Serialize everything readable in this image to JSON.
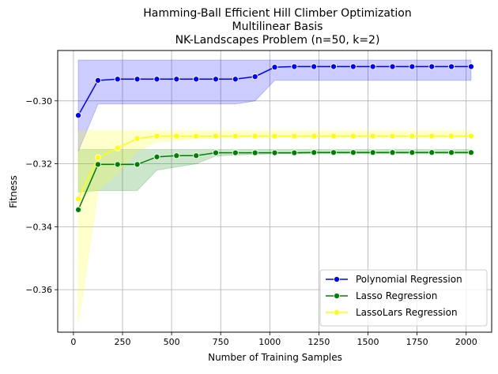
{
  "chart_data": {
    "type": "line",
    "title_lines": [
      "Hamming-Ball Efficient Hill Climber Optimization",
      "Multilinear Basis",
      "NK-Landscapes Problem (n=50, k=2)"
    ],
    "xlabel": "Number of Training Samples",
    "ylabel": "Fitness",
    "xlim": [
      -80,
      2130
    ],
    "ylim": [
      -0.3735,
      -0.284
    ],
    "xticks": [
      0,
      250,
      500,
      750,
      1000,
      1250,
      1500,
      1750,
      2000
    ],
    "xtick_labels": [
      "0",
      "250",
      "500",
      "750",
      "1000",
      "1250",
      "1500",
      "1750",
      "2000"
    ],
    "yticks": [
      -0.3,
      -0.32,
      -0.34,
      -0.36
    ],
    "ytick_labels": [
      "−0.30",
      "−0.32",
      "−0.34",
      "−0.36"
    ],
    "grid": true,
    "legend_position": "lower-right",
    "x": [
      25,
      125,
      225,
      325,
      425,
      525,
      625,
      725,
      825,
      925,
      1025,
      1125,
      1225,
      1325,
      1425,
      1525,
      1625,
      1725,
      1825,
      1925,
      2025
    ],
    "series": [
      {
        "name": "Polynomial Regression",
        "color": "#0000ff",
        "band_color": "#0000ff",
        "band_opacity": 0.2,
        "values": [
          -0.3046,
          -0.2935,
          -0.2931,
          -0.2931,
          -0.2931,
          -0.2931,
          -0.2931,
          -0.2931,
          -0.2931,
          -0.2923,
          -0.2893,
          -0.2891,
          -0.2891,
          -0.2891,
          -0.2891,
          -0.2891,
          -0.2891,
          -0.2891,
          -0.2891,
          -0.2891,
          -0.2891
        ],
        "lower": [
          -0.316,
          -0.301,
          -0.301,
          -0.301,
          -0.301,
          -0.301,
          -0.301,
          -0.301,
          -0.301,
          -0.3,
          -0.2935,
          -0.2935,
          -0.2935,
          -0.2935,
          -0.2935,
          -0.2935,
          -0.2935,
          -0.2935,
          -0.2935,
          -0.2935,
          -0.2935
        ],
        "upper": [
          -0.287,
          -0.287,
          -0.287,
          -0.287,
          -0.287,
          -0.287,
          -0.287,
          -0.287,
          -0.287,
          -0.287,
          -0.287,
          -0.287,
          -0.287,
          -0.287,
          -0.287,
          -0.287,
          -0.287,
          -0.287,
          -0.287,
          -0.287,
          -0.287
        ]
      },
      {
        "name": "Lasso Regression",
        "color": "#008000",
        "band_color": "#008000",
        "band_opacity": 0.2,
        "values": [
          -0.3346,
          -0.3202,
          -0.3202,
          -0.3202,
          -0.3178,
          -0.3174,
          -0.3174,
          -0.3165,
          -0.3165,
          -0.3165,
          -0.3165,
          -0.3165,
          -0.3164,
          -0.3164,
          -0.3164,
          -0.3164,
          -0.3164,
          -0.3164,
          -0.3164,
          -0.3164,
          -0.3164
        ],
        "lower": [
          -0.329,
          -0.3285,
          -0.3285,
          -0.3285,
          -0.322,
          -0.321,
          -0.32,
          -0.3175,
          -0.3172,
          -0.317,
          -0.3168,
          -0.3168,
          -0.3168,
          -0.3168,
          -0.3168,
          -0.3168,
          -0.3168,
          -0.3168,
          -0.3168,
          -0.3168,
          -0.3168
        ],
        "upper": [
          -0.3155,
          -0.3155,
          -0.3155,
          -0.3155,
          -0.3155,
          -0.3155,
          -0.3155,
          -0.3155,
          -0.3155,
          -0.3155,
          -0.3155,
          -0.3155,
          -0.3155,
          -0.3155,
          -0.3155,
          -0.3155,
          -0.3155,
          -0.3155,
          -0.3155,
          -0.3155,
          -0.3155
        ]
      },
      {
        "name": "LassoLars Regression",
        "color": "#ffff00",
        "band_color": "#ffff00",
        "band_opacity": 0.2,
        "values": [
          -0.3312,
          -0.318,
          -0.315,
          -0.312,
          -0.3112,
          -0.3112,
          -0.3112,
          -0.3112,
          -0.3112,
          -0.3112,
          -0.3112,
          -0.3112,
          -0.3112,
          -0.3112,
          -0.3112,
          -0.3112,
          -0.3112,
          -0.3112,
          -0.3112,
          -0.3112,
          -0.3112
        ],
        "lower": [
          -0.3705,
          -0.3285,
          -0.323,
          -0.316,
          -0.313,
          -0.3125,
          -0.312,
          -0.3118,
          -0.3115,
          -0.3115,
          -0.3115,
          -0.3115,
          -0.3115,
          -0.3115,
          -0.3115,
          -0.3115,
          -0.3115,
          -0.3115,
          -0.3115,
          -0.3115,
          -0.3115
        ],
        "upper": [
          -0.3095,
          -0.3095,
          -0.3095,
          -0.3095,
          -0.3095,
          -0.3095,
          -0.3095,
          -0.3095,
          -0.3095,
          -0.3095,
          -0.3095,
          -0.3095,
          -0.3095,
          -0.3095,
          -0.3095,
          -0.3095,
          -0.3095,
          -0.3095,
          -0.3095,
          -0.3095,
          -0.3095
        ]
      }
    ]
  }
}
